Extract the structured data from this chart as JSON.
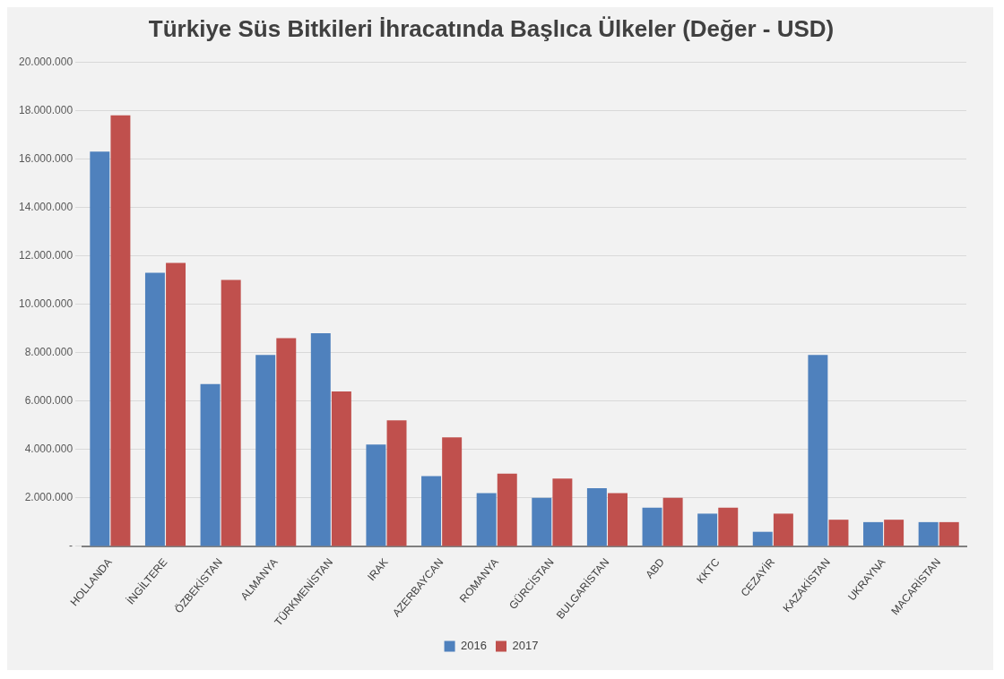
{
  "chart_data": {
    "type": "bar",
    "title": "Türkiye Süs Bitkileri İhracatında Başlıca Ülkeler (Değer - USD)",
    "categories": [
      "HOLLANDA",
      "İNGİLTERE",
      "ÖZBEKİSTAN",
      "ALMANYA",
      "TÜRKMENİSTAN",
      "IRAK",
      "AZERBAYCAN",
      "ROMANYA",
      "GÜRCİSTAN",
      "BULGARİSTAN",
      "ABD",
      "KKTC",
      "CEZAYİR",
      "KAZAKİSTAN",
      "UKRAYNA",
      "MACARİSTAN"
    ],
    "series": [
      {
        "name": "2016",
        "color": "#4f81bd",
        "values": [
          16300000,
          11300000,
          6700000,
          7900000,
          8800000,
          4200000,
          2900000,
          2200000,
          2000000,
          2400000,
          1600000,
          1350000,
          600000,
          7900000,
          1000000,
          1000000
        ]
      },
      {
        "name": "2017",
        "color": "#c0504d",
        "values": [
          17800000,
          11700000,
          11000000,
          8600000,
          6400000,
          5200000,
          4500000,
          3000000,
          2800000,
          2200000,
          2000000,
          1600000,
          1350000,
          1100000,
          1100000,
          1000000
        ]
      }
    ],
    "ylim": [
      0,
      20000000
    ],
    "yticks": [
      {
        "value": 0,
        "label": "-"
      },
      {
        "value": 2000000,
        "label": "2.000.000"
      },
      {
        "value": 4000000,
        "label": "4.000.000"
      },
      {
        "value": 6000000,
        "label": "6.000.000"
      },
      {
        "value": 8000000,
        "label": "8.000.000"
      },
      {
        "value": 10000000,
        "label": "10.000.000"
      },
      {
        "value": 12000000,
        "label": "12.000.000"
      },
      {
        "value": 14000000,
        "label": "14.000.000"
      },
      {
        "value": 16000000,
        "label": "16.000.000"
      },
      {
        "value": 18000000,
        "label": "18.000.000"
      },
      {
        "value": 20000000,
        "label": "20.000.000"
      }
    ],
    "grid": "y",
    "legend": "bottom"
  }
}
